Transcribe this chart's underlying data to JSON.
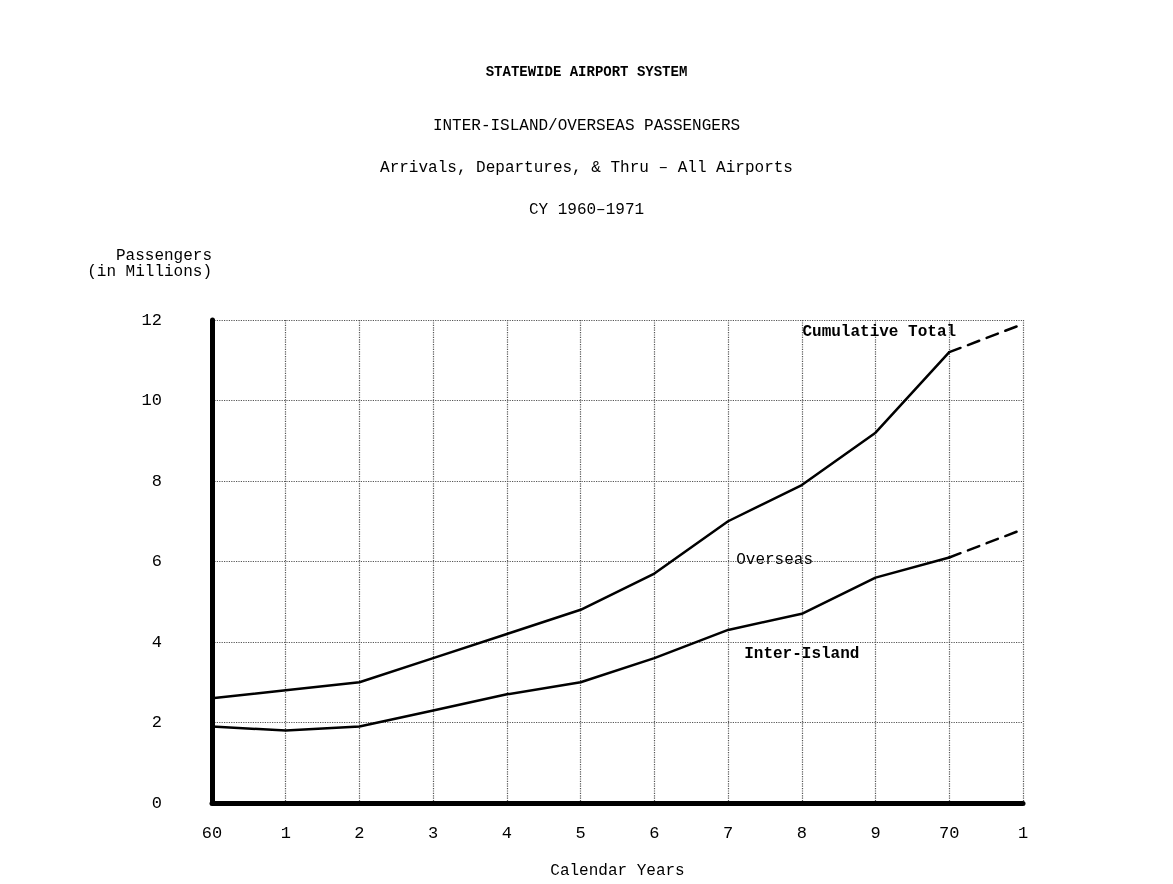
{
  "chart_data": {
    "type": "line",
    "title": "STATEWIDE AIRPORT SYSTEM",
    "subtitle": "INTER-ISLAND/OVERSEAS PASSENGERS\nArrivals, Departures, & Thru – All Airports\nCY 1960–1971",
    "xlabel": "Calendar Years",
    "ylabel": "Passengers\n(in Millions)",
    "categories": [
      "60",
      "1",
      "2",
      "3",
      "4",
      "5",
      "6",
      "7",
      "8",
      "9",
      "70",
      "1"
    ],
    "series": [
      {
        "name": "Cumulative Total",
        "color": "#000000",
        "line_style": "solid",
        "values": [
          2.6,
          2.8,
          3.0,
          3.6,
          4.2,
          4.8,
          5.7,
          7.0,
          7.9,
          9.2,
          11.2,
          null
        ]
      },
      {
        "color": "#000000",
        "line_style": "dashed",
        "values": [
          null,
          null,
          null,
          null,
          null,
          null,
          null,
          null,
          null,
          null,
          11.2,
          11.9
        ]
      },
      {
        "name": "Inter-Island",
        "color": "#000000",
        "line_style": "solid",
        "values": [
          1.9,
          1.8,
          1.9,
          2.3,
          2.7,
          3.0,
          3.6,
          4.3,
          4.7,
          5.6,
          6.1,
          null
        ]
      },
      {
        "color": "#000000",
        "line_style": "dashed",
        "values": [
          null,
          null,
          null,
          null,
          null,
          null,
          null,
          null,
          null,
          null,
          6.1,
          6.8
        ]
      }
    ],
    "annotations": [
      "Overseas"
    ],
    "ylim": [
      0,
      12
    ],
    "yticks": [
      0,
      2,
      4,
      6,
      8,
      10,
      12
    ],
    "grid": true,
    "marker": "none",
    "legend": false
  }
}
